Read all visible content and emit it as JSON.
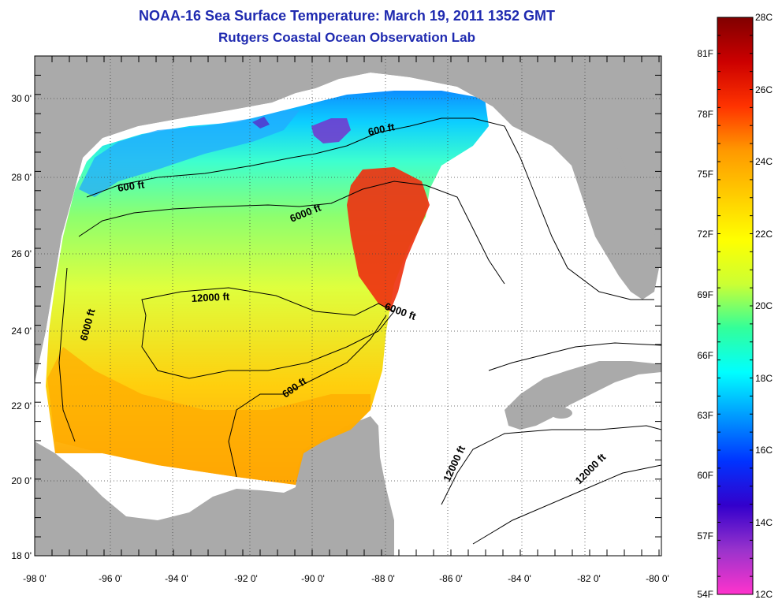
{
  "header": {
    "title": "NOAA-16 Sea Surface Temperature:  March 19, 2011 1352 GMT",
    "subtitle": "Rutgers Coastal Ocean Observation Lab"
  },
  "map": {
    "lon_labels": [
      "-98 0'",
      "-96 0'",
      "-94 0'",
      "-92 0'",
      "-90 0'",
      "-88 0'",
      "-86 0'",
      "-84 0'",
      "-82 0'",
      "-80 0'"
    ],
    "lat_labels": [
      "30 0'",
      "28 0'",
      "26 0'",
      "24 0'",
      "22 0'",
      "20 0'",
      "18 0'"
    ],
    "contour_labels": [
      "600 ft",
      "600 ft",
      "6000 ft",
      "12000 ft",
      "6000 ft",
      "6000 ft",
      "600 ft",
      "12000 ft",
      "12000 ft"
    ],
    "colors": {
      "land": "#aaaaaa",
      "no_data": "#ffffff",
      "contour": "#000000"
    }
  },
  "colorbar": {
    "celsius_labels": [
      "28C",
      "26C",
      "24C",
      "22C",
      "20C",
      "18C",
      "16C",
      "14C",
      "12C"
    ],
    "fahrenheit_labels": [
      "81F",
      "78F",
      "75F",
      "72F",
      "69F",
      "66F",
      "63F",
      "60F",
      "57F",
      "54F"
    ],
    "stops": [
      "#ff33cc",
      "#9933cc",
      "#3300cc",
      "#0033ff",
      "#0099ff",
      "#00ffff",
      "#33ff99",
      "#ccff33",
      "#ffff00",
      "#ffcc00",
      "#ff9900",
      "#ff3300",
      "#cc0000",
      "#800000"
    ]
  }
}
